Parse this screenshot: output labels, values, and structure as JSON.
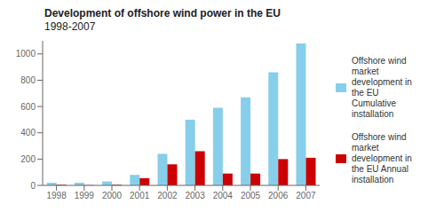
{
  "chart_data": {
    "type": "bar",
    "title": "Development of offshore wind power in the EU",
    "subtitle": "1998-2007",
    "categories": [
      "1998",
      "1999",
      "2000",
      "2001",
      "2002",
      "2003",
      "2004",
      "2005",
      "2006",
      "2007"
    ],
    "series": [
      {
        "name": "Offshore wind\nmarket\ndevelopment in\nthe EU\nCumulative\ninstallation",
        "color": "#87CEEB",
        "values": [
          20,
          20,
          30,
          80,
          240,
          500,
          590,
          670,
          860,
          1080
        ]
      },
      {
        "name": "Offshore wind\nmarket\ndevelopment in\nthe EU Annual\ninstallation",
        "color": "#CC0000",
        "values": [
          5,
          2,
          5,
          55,
          160,
          260,
          90,
          90,
          200,
          210
        ]
      }
    ],
    "ylim": [
      0,
      1100
    ],
    "yticks": [
      0,
      200,
      400,
      600,
      800,
      1000
    ],
    "grid": false,
    "legend": "right"
  }
}
